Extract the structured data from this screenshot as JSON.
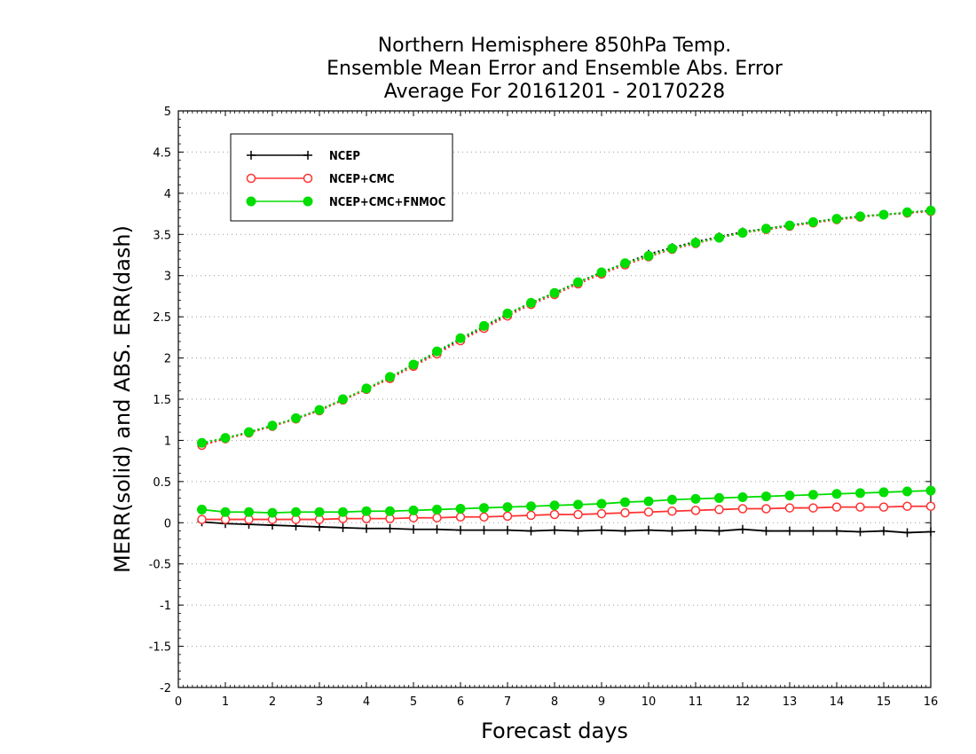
{
  "chart_data": {
    "type": "line",
    "title_lines": [
      "Northern Hemisphere 850hPa Temp.",
      "Ensemble Mean Error and Ensemble Abs. Error",
      "Average For 20161201 - 20170228"
    ],
    "xlabel": "Forecast days",
    "ylabel": "MERR(solid) and ABS. ERR(dash)",
    "xlim": [
      0,
      16
    ],
    "ylim": [
      -2,
      5
    ],
    "x_ticks": [
      "0",
      "1",
      "2",
      "3",
      "4",
      "5",
      "6",
      "7",
      "8",
      "9",
      "10",
      "11",
      "12",
      "13",
      "14",
      "15",
      "16"
    ],
    "y_ticks": [
      "5",
      "4.5",
      "4",
      "3.5",
      "3",
      "2.5",
      "2",
      "1.5",
      "1",
      "0.5",
      "0",
      "-0.5",
      "-1",
      "-1.5",
      "-2"
    ],
    "grid": true,
    "legend_position": "top-left",
    "x": [
      0.5,
      1,
      1.5,
      2,
      2.5,
      3,
      3.5,
      4,
      4.5,
      5,
      5.5,
      6,
      6.5,
      7,
      7.5,
      8,
      8.5,
      9,
      9.5,
      10,
      10.5,
      11,
      11.5,
      12,
      12.5,
      13,
      13.5,
      14,
      14.5,
      15,
      15.5,
      16
    ],
    "series": [
      {
        "name": "NCEP",
        "style": "solid",
        "color": "#000000",
        "marker": "plus",
        "values": [
          0.01,
          -0.01,
          -0.02,
          -0.03,
          -0.04,
          -0.05,
          -0.06,
          -0.07,
          -0.07,
          -0.08,
          -0.08,
          -0.09,
          -0.09,
          -0.09,
          -0.1,
          -0.09,
          -0.1,
          -0.09,
          -0.1,
          -0.09,
          -0.1,
          -0.09,
          -0.1,
          -0.08,
          -0.1,
          -0.1,
          -0.1,
          -0.1,
          -0.11,
          -0.1,
          -0.12,
          -0.11
        ]
      },
      {
        "name": "NCEP+CMC",
        "style": "solid",
        "color": "#ff3333",
        "marker": "open-circle",
        "values": [
          0.04,
          0.04,
          0.04,
          0.04,
          0.04,
          0.04,
          0.05,
          0.05,
          0.05,
          0.06,
          0.06,
          0.07,
          0.07,
          0.08,
          0.09,
          0.1,
          0.1,
          0.11,
          0.12,
          0.13,
          0.14,
          0.15,
          0.16,
          0.17,
          0.17,
          0.18,
          0.18,
          0.19,
          0.19,
          0.19,
          0.2,
          0.2
        ]
      },
      {
        "name": "NCEP+CMC+FNMOC",
        "style": "solid",
        "color": "#00dd00",
        "marker": "filled-circle",
        "values": [
          0.16,
          0.13,
          0.13,
          0.12,
          0.13,
          0.13,
          0.13,
          0.14,
          0.14,
          0.15,
          0.16,
          0.17,
          0.18,
          0.19,
          0.2,
          0.21,
          0.22,
          0.23,
          0.25,
          0.26,
          0.28,
          0.29,
          0.3,
          0.31,
          0.32,
          0.33,
          0.34,
          0.35,
          0.36,
          0.37,
          0.38,
          0.39
        ]
      },
      {
        "name": "NCEP abs",
        "style": "dash",
        "color": "#000000",
        "marker": "plus",
        "values": [
          0.95,
          1.02,
          1.1,
          1.18,
          1.26,
          1.37,
          1.49,
          1.62,
          1.76,
          1.92,
          2.07,
          2.23,
          2.38,
          2.53,
          2.67,
          2.79,
          2.92,
          3.04,
          3.15,
          3.26,
          3.34,
          3.41,
          3.47,
          3.53,
          3.57,
          3.61,
          3.65,
          3.69,
          3.72,
          3.74,
          3.76,
          3.79
        ]
      },
      {
        "name": "NCEP+CMC abs",
        "style": "dash",
        "color": "#ff3333",
        "marker": "open-circle",
        "values": [
          0.94,
          1.02,
          1.09,
          1.17,
          1.26,
          1.36,
          1.49,
          1.62,
          1.75,
          1.9,
          2.05,
          2.21,
          2.36,
          2.51,
          2.65,
          2.77,
          2.9,
          3.02,
          3.13,
          3.23,
          3.32,
          3.39,
          3.46,
          3.52,
          3.56,
          3.6,
          3.64,
          3.68,
          3.71,
          3.74,
          3.76,
          3.78
        ]
      },
      {
        "name": "NCEP+CMC+FNMOC abs",
        "style": "dash",
        "color": "#00dd00",
        "marker": "filled-circle",
        "values": [
          0.97,
          1.03,
          1.1,
          1.18,
          1.27,
          1.37,
          1.5,
          1.63,
          1.77,
          1.92,
          2.08,
          2.24,
          2.39,
          2.54,
          2.67,
          2.79,
          2.92,
          3.04,
          3.15,
          3.24,
          3.33,
          3.4,
          3.46,
          3.52,
          3.57,
          3.61,
          3.65,
          3.69,
          3.72,
          3.74,
          3.77,
          3.79
        ]
      }
    ],
    "legend": [
      {
        "label": "NCEP",
        "color": "#000000",
        "marker": "plus"
      },
      {
        "label": "NCEP+CMC",
        "color": "#ff3333",
        "marker": "open-circle"
      },
      {
        "label": "NCEP+CMC+FNMOC",
        "color": "#00dd00",
        "marker": "filled-circle"
      }
    ]
  }
}
